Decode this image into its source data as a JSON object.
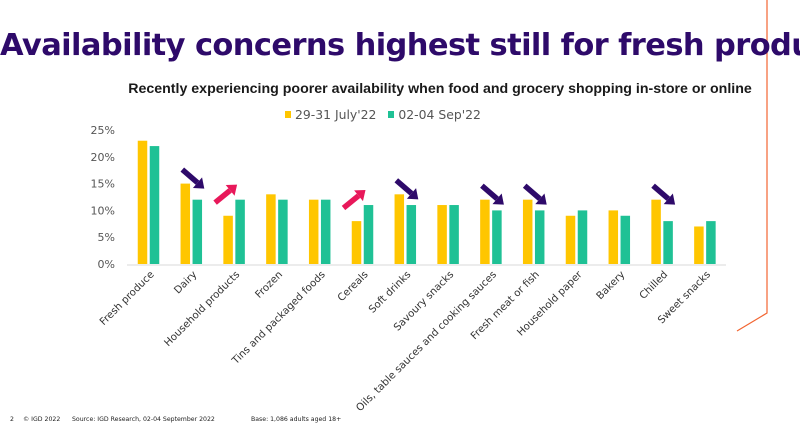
{
  "slide": {
    "title": "Availability concerns highest still for fresh produce",
    "footer": {
      "page_number": "2",
      "copyright": "© IGD 2022",
      "source": "Source: IGD Research, 02-04 September 2022",
      "base": "Base: 1,086 adults aged 18+"
    },
    "accent_colors": {
      "title": "#2e0a6a",
      "decrease_arrow": "#2e0a6a",
      "increase_arrow": "#e8185a",
      "frame_line": "#f26531"
    }
  },
  "chart_data": {
    "type": "bar",
    "title": "Recently experiencing poorer availability when food and grocery shopping in-store or online",
    "xlabel": "",
    "ylabel": "",
    "ylim": [
      0,
      25
    ],
    "yticks": [
      0,
      5,
      10,
      15,
      20,
      25
    ],
    "ytick_labels": [
      "0%",
      "5%",
      "10%",
      "15%",
      "20%",
      "25%"
    ],
    "grid": false,
    "legend_position": "top-center",
    "categories": [
      "Fresh produce",
      "Dairy",
      "Household products",
      "Frozen",
      "Tins and packaged foods",
      "Cereals",
      "Soft drinks",
      "Savoury snacks",
      "Oils, table sauces and cooking sauces",
      "Fresh meat or fish",
      "Household paper",
      "Bakery",
      "Chilled",
      "Sweet snacks"
    ],
    "series": [
      {
        "name": "29-31 July'22",
        "color": "#ffc600",
        "values": [
          23,
          15,
          9,
          13,
          12,
          8,
          13,
          11,
          12,
          12,
          9,
          10,
          12,
          7
        ]
      },
      {
        "name": "02-04 Sep'22",
        "color": "#1fc195",
        "values": [
          22,
          12,
          12,
          12,
          12,
          11,
          11,
          11,
          10,
          10,
          10,
          9,
          8,
          8
        ]
      }
    ],
    "annotations": [
      {
        "category": "Dairy",
        "type": "arrow",
        "direction": "down",
        "meaning": "decrease"
      },
      {
        "category": "Household products",
        "type": "arrow",
        "direction": "up",
        "meaning": "increase"
      },
      {
        "category": "Cereals",
        "type": "arrow",
        "direction": "up",
        "meaning": "increase"
      },
      {
        "category": "Soft drinks",
        "type": "arrow",
        "direction": "down",
        "meaning": "decrease"
      },
      {
        "category": "Oils, table sauces and cooking sauces",
        "type": "arrow",
        "direction": "down",
        "meaning": "decrease"
      },
      {
        "category": "Fresh meat or fish",
        "type": "arrow",
        "direction": "down",
        "meaning": "decrease"
      },
      {
        "category": "Chilled",
        "type": "arrow",
        "direction": "down",
        "meaning": "decrease"
      }
    ]
  }
}
